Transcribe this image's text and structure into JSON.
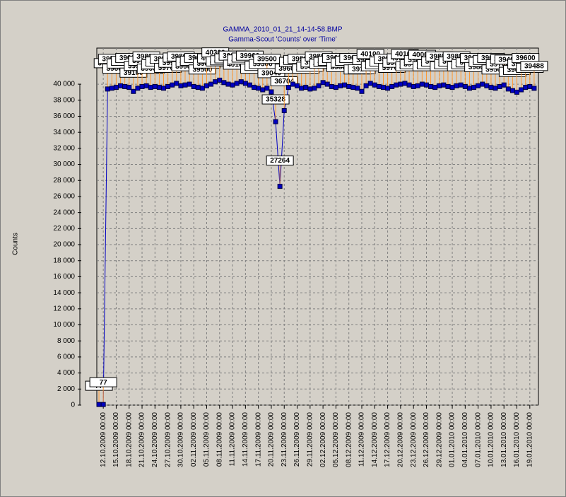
{
  "chart_data": {
    "type": "line",
    "title": "GAMMA_2010_01_21_14-14-58.BMP",
    "subtitle": "Gamma-Scout 'Counts' over 'Time'",
    "y_label": "Counts",
    "x": [
      "11.10.2009 00:00",
      "12.10.2009 00:00",
      "13.10.2009 00:00",
      "14.10.2009 00:00",
      "15.10.2009 00:00",
      "16.10.2009 00:00",
      "17.10.2009 00:00",
      "18.10.2009 00:00",
      "19.10.2009 00:00",
      "20.10.2009 00:00",
      "21.10.2009 00:00",
      "22.10.2009 00:00",
      "23.10.2009 00:00",
      "24.10.2009 00:00",
      "25.10.2009 00:00",
      "26.10.2009 00:00",
      "27.10.2009 00:00",
      "28.10.2009 00:00",
      "29.10.2009 00:00",
      "30.10.2009 00:00",
      "31.10.2009 00:00",
      "01.11.2009 00:00",
      "02.11.2009 00:00",
      "03.11.2009 00:00",
      "04.11.2009 00:00",
      "05.11.2009 00:00",
      "06.11.2009 00:00",
      "07.11.2009 00:00",
      "08.11.2009 00:00",
      "09.11.2009 00:00",
      "10.11.2009 00:00",
      "11.11.2009 00:00",
      "12.11.2009 00:00",
      "13.11.2009 00:00",
      "14.11.2009 00:00",
      "15.11.2009 00:00",
      "16.11.2009 00:00",
      "17.11.2009 00:00",
      "18.11.2009 00:00",
      "19.11.2009 00:00",
      "20.11.2009 00:00",
      "21.11.2009 00:00",
      "22.11.2009 00:00",
      "23.11.2009 00:00",
      "24.11.2009 00:00",
      "25.11.2009 00:00",
      "26.11.2009 00:00",
      "27.11.2009 00:00",
      "28.11.2009 00:00",
      "29.11.2009 00:00",
      "30.11.2009 00:00",
      "01.12.2009 00:00",
      "02.12.2009 00:00",
      "03.12.2009 00:00",
      "04.12.2009 00:00",
      "05.12.2009 00:00",
      "06.12.2009 00:00",
      "07.12.2009 00:00",
      "08.12.2009 00:00",
      "09.12.2009 00:00",
      "10.12.2009 00:00",
      "11.12.2009 00:00",
      "12.12.2009 00:00",
      "13.12.2009 00:00",
      "14.12.2009 00:00",
      "15.12.2009 00:00",
      "16.12.2009 00:00",
      "17.12.2009 00:00",
      "18.12.2009 00:00",
      "19.12.2009 00:00",
      "20.12.2009 00:00",
      "21.12.2009 00:00",
      "22.12.2009 00:00",
      "23.12.2009 00:00",
      "24.12.2009 00:00",
      "25.12.2009 00:00",
      "26.12.2009 00:00",
      "27.12.2009 00:00",
      "28.12.2009 00:00",
      "29.12.2009 00:00",
      "30.12.2009 00:00",
      "31.12.2009 00:00",
      "01.01.2010 00:00",
      "02.01.2010 00:00",
      "03.01.2010 00:00",
      "04.01.2010 00:00",
      "05.01.2010 00:00",
      "06.01.2010 00:00",
      "07.01.2010 00:00",
      "08.01.2010 00:00",
      "09.01.2010 00:00",
      "10.01.2010 00:00",
      "11.01.2010 00:00",
      "12.01.2010 00:00",
      "13.01.2010 00:00",
      "14.01.2010 00:00",
      "15.01.2010 00:00",
      "16.01.2010 00:00",
      "17.01.2010 00:00",
      "18.01.2010 00:00",
      "19.01.2010 00:00",
      "20.01.2010 00:00"
    ],
    "series": [
      {
        "name": "Counts",
        "color": "#0000c0",
        "values": [
          77,
          77,
          39400,
          39500,
          39600,
          39800,
          39700,
          39600,
          39100,
          39500,
          39700,
          39800,
          39600,
          39700,
          39600,
          39500,
          39700,
          39900,
          40100,
          39800,
          39900,
          40000,
          39700,
          39600,
          39500,
          39800,
          40000,
          40300,
          40500,
          40200,
          40000,
          39900,
          40100,
          40300,
          40100,
          39900,
          39600,
          39500,
          39300,
          39500,
          39040,
          35328,
          27264,
          36704,
          39600,
          40000,
          39800,
          39500,
          39600,
          39400,
          39500,
          39800,
          40200,
          40000,
          39700,
          39600,
          39800,
          39900,
          39700,
          39600,
          39500,
          39100,
          39800,
          40100,
          39900,
          39700,
          39600,
          39500,
          39700,
          39900,
          40000,
          40100,
          39900,
          39700,
          39800,
          40000,
          39900,
          39700,
          39600,
          39800,
          39900,
          39700,
          39600,
          39800,
          39900,
          39700,
          39500,
          39600,
          39800,
          40000,
          39800,
          39600,
          39500,
          39700,
          39900,
          39400,
          39200,
          39000,
          39300,
          39600,
          39700,
          39488
        ]
      }
    ],
    "xlim": [
      "10.10.2009 12:00",
      "21.01.2010 00:00"
    ],
    "xticks": [
      "12.10.2009 00:00",
      "15.10.2009 00:00",
      "18.10.2009 00:00",
      "21.10.2009 00:00",
      "24.10.2009 00:00",
      "27.10.2009 00:00",
      "30.10.2009 00:00",
      "02.11.2009 00:00",
      "05.11.2009 00:00",
      "08.11.2009 00:00",
      "11.11.2009 00:00",
      "14.11.2009 00:00",
      "17.11.2009 00:00",
      "20.11.2009 00:00",
      "23.11.2009 00:00",
      "26.11.2009 00:00",
      "29.11.2009 00:00",
      "02.12.2009 00:00",
      "05.12.2009 00:00",
      "08.12.2009 00:00",
      "11.12.2009 00:00",
      "14.12.2009 00:00",
      "17.12.2009 00:00",
      "20.12.2009 00:00",
      "23.12.2009 00:00",
      "26.12.2009 00:00",
      "29.12.2009 00:00",
      "01.01.2010 00:00",
      "04.01.2010 00:00",
      "07.01.2010 00:00",
      "10.01.2010 00:00",
      "13.01.2010 00:00",
      "16.01.2010 00:00",
      "19.01.2010 00:00"
    ],
    "ylim": [
      0,
      44500
    ],
    "yticks": [
      0,
      {
        "value": 2000,
        "label": "2 000"
      },
      {
        "value": 4000,
        "label": "4 000"
      },
      {
        "value": 6000,
        "label": "6 000"
      },
      {
        "value": 8000,
        "label": "8 000"
      },
      {
        "value": 10000,
        "label": "10 000"
      },
      {
        "value": 12000,
        "label": "12 000"
      },
      {
        "value": 14000,
        "label": "14 000"
      },
      {
        "value": 16000,
        "label": "16 000"
      },
      {
        "value": 18000,
        "label": "18 000"
      },
      {
        "value": 20000,
        "label": "20 000"
      },
      {
        "value": 22000,
        "label": "22 000"
      },
      {
        "value": 24000,
        "label": "24 000"
      },
      {
        "value": 26000,
        "label": "26 000"
      },
      {
        "value": 28000,
        "label": "28 000"
      },
      {
        "value": 30000,
        "label": "30 000"
      },
      {
        "value": 32000,
        "label": "32 000"
      },
      {
        "value": 34000,
        "label": "34 000"
      },
      {
        "value": 36000,
        "label": "36 000"
      },
      {
        "value": 38000,
        "label": "38 000"
      },
      {
        "value": 40000,
        "label": "40 000"
      }
    ],
    "grid": true
  }
}
